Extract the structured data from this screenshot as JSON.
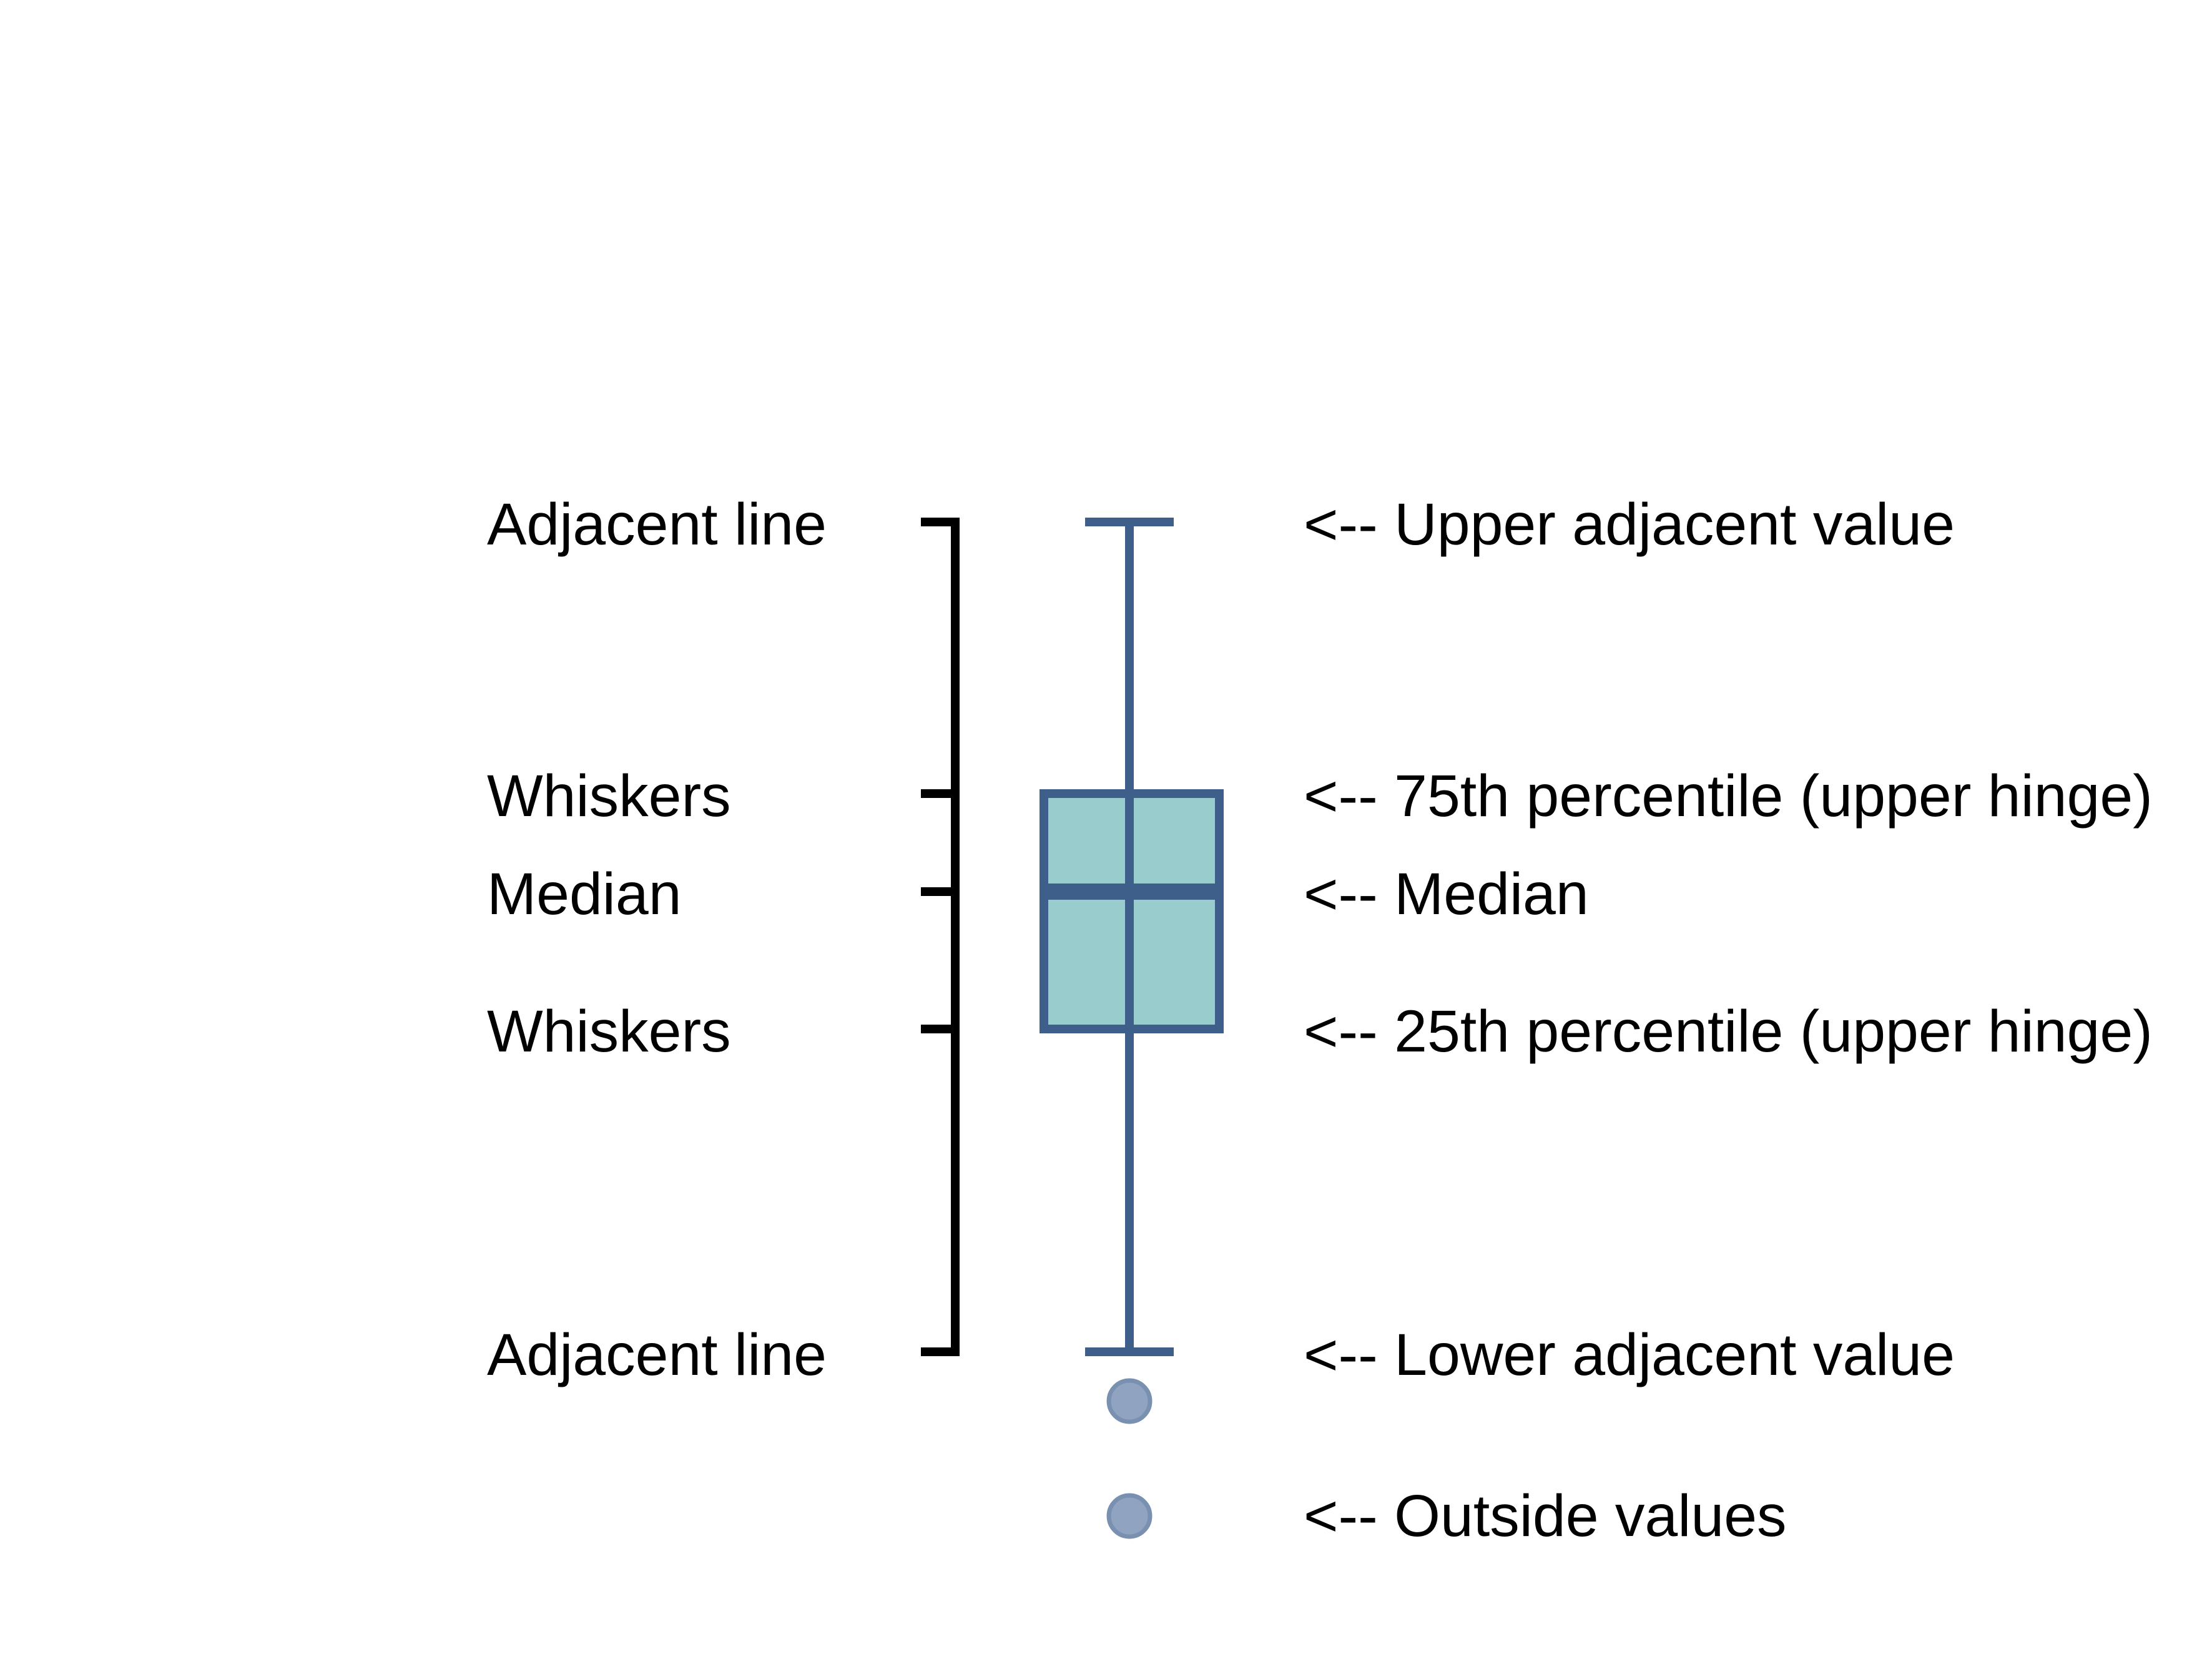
{
  "left_labels": {
    "adjacent_line_top": "Adjacent line",
    "whiskers_top": "Whiskers",
    "median": "Median",
    "whiskers_bottom": "Whiskers",
    "adjacent_line_bottom": "Adjacent line"
  },
  "right_labels": {
    "upper_adjacent": "<-- Upper adjacent value",
    "upper_hinge": "<-- 75th percentile (upper hinge)",
    "median": "<-- Median",
    "lower_hinge": "<-- 25th percentile (upper hinge)",
    "lower_adjacent": "<-- Lower adjacent value",
    "outside": "<-- Outside values"
  },
  "colors": {
    "box_fill": "#99cccc",
    "box_stroke": "#3e5f8a",
    "outlier_fill": "#90a3c0",
    "bracket": "#000000",
    "text": "#000000"
  }
}
